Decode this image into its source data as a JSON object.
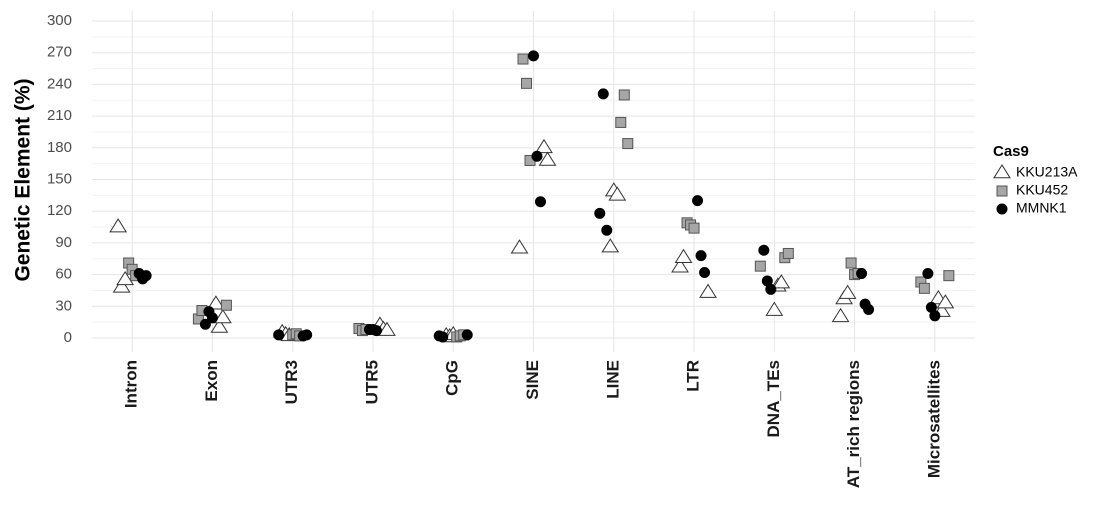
{
  "chart_data": {
    "type": "strip",
    "y_label": "Genetic Element (%)",
    "categories": [
      "Intron",
      "Exon",
      "UTR3",
      "UTR5",
      "CpG",
      "SINE",
      "LINE",
      "LTR",
      "DNA_TEs",
      "AT_rich regions",
      "Microsatellites"
    ],
    "ylim": [
      0,
      300
    ],
    "yticks": [
      0,
      30,
      60,
      90,
      120,
      150,
      180,
      210,
      240,
      270,
      300
    ],
    "grid": true,
    "legend_title": "Cas9",
    "legend_position": "right",
    "series": [
      {
        "name": "KKU213A",
        "shape": "triangle",
        "color": "#ffffff",
        "values": [
          [
            105,
            48,
            55
          ],
          [
            32,
            10,
            19
          ],
          [
            5,
            3,
            2
          ],
          [
            12,
            8,
            7
          ],
          [
            2,
            1,
            3
          ],
          [
            180,
            168,
            85
          ],
          [
            86,
            139,
            135
          ],
          [
            43,
            67,
            76
          ],
          [
            26,
            49,
            52
          ],
          [
            20,
            37,
            42
          ],
          [
            37,
            25,
            33
          ]
        ]
      },
      {
        "name": "KKU452",
        "shape": "square",
        "color": "#a6a6a6",
        "values": [
          [
            71,
            65,
            59
          ],
          [
            31,
            18,
            26
          ],
          [
            3,
            4,
            2
          ],
          [
            9,
            7,
            8
          ],
          [
            1,
            2,
            3
          ],
          [
            264,
            241,
            168
          ],
          [
            204,
            230,
            184
          ],
          [
            109,
            107,
            104
          ],
          [
            76,
            80,
            68
          ],
          [
            71,
            60,
            61
          ],
          [
            59,
            53,
            47
          ]
        ]
      },
      {
        "name": "MMNK1",
        "shape": "circle",
        "color": "#000000",
        "values": [
          [
            61,
            56,
            59
          ],
          [
            13,
            25,
            19
          ],
          [
            2,
            3,
            3
          ],
          [
            8,
            8,
            7
          ],
          [
            3,
            2,
            1
          ],
          [
            267,
            172,
            129
          ],
          [
            118,
            231,
            102
          ],
          [
            130,
            78,
            62
          ],
          [
            83,
            54,
            46
          ],
          [
            61,
            32,
            27
          ],
          [
            61,
            29,
            21
          ]
        ]
      }
    ]
  }
}
